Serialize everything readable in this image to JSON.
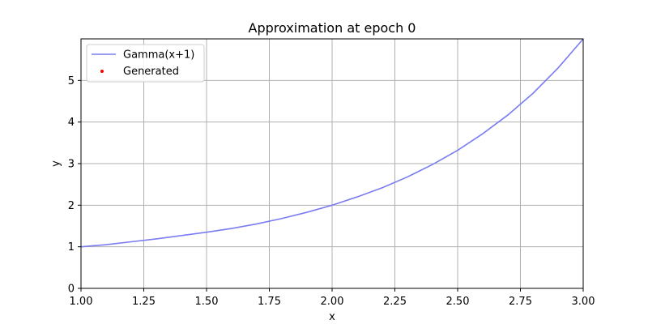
{
  "chart_data": {
    "type": "line",
    "title": "Approximation at epoch 0",
    "xlabel": "x",
    "ylabel": "y",
    "xlim": [
      1.0,
      3.0
    ],
    "ylim": [
      0,
      6.0
    ],
    "grid": true,
    "legend_position": "top-left",
    "x_ticks": [
      1.0,
      1.25,
      1.5,
      1.75,
      2.0,
      2.25,
      2.5,
      2.75,
      3.0
    ],
    "x_tick_labels": [
      "1.00",
      "1.25",
      "1.50",
      "1.75",
      "2.00",
      "2.25",
      "2.50",
      "2.75",
      "3.00"
    ],
    "y_ticks": [
      0,
      1,
      2,
      3,
      4,
      5
    ],
    "y_tick_labels": [
      "0",
      "1",
      "2",
      "3",
      "4",
      "5"
    ],
    "series": [
      {
        "name": "Gamma(x+1)",
        "kind": "line",
        "color": "#7b7bf2",
        "x": [
          1.0,
          1.1,
          1.2,
          1.3,
          1.4,
          1.5,
          1.6,
          1.7,
          1.8,
          1.9,
          2.0,
          2.1,
          2.2,
          2.3,
          2.4,
          2.5,
          2.6,
          2.7,
          2.8,
          2.9,
          3.0
        ],
        "y": [
          1.0,
          1.05,
          1.12,
          1.19,
          1.27,
          1.35,
          1.44,
          1.55,
          1.68,
          1.83,
          2.0,
          2.2,
          2.42,
          2.68,
          2.98,
          3.32,
          3.72,
          4.17,
          4.69,
          5.3,
          6.0
        ]
      },
      {
        "name": "Generated",
        "kind": "scatter",
        "color": "#ff0000",
        "x": [],
        "y": []
      }
    ]
  }
}
